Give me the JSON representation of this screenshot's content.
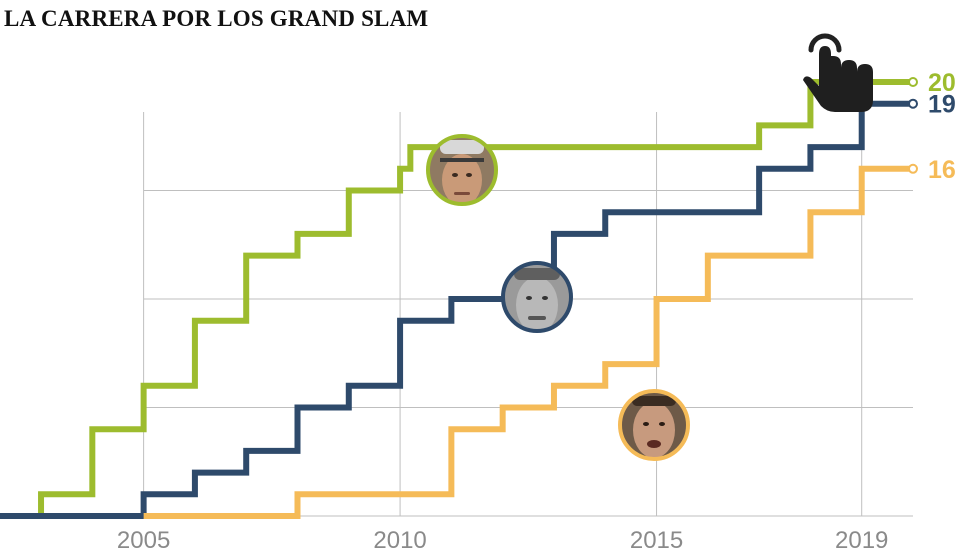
{
  "title": "LA CARRERA POR LOS GRAND SLAM",
  "colors": {
    "federer": "#9dbc2e",
    "nadal": "#2e4a6b",
    "djokovic": "#f5bb58",
    "grid": "#bfbfbf",
    "tick_text": "#8a8a8a"
  },
  "icons": {
    "pointer": "hand-pointer-icon",
    "photo": "player-photo-icon"
  },
  "chart_data": {
    "type": "line",
    "step": true,
    "title": "LA CARRERA POR LOS GRAND SLAM",
    "xlabel": "",
    "ylabel": "",
    "xlim": [
      2002.2,
      2020.0
    ],
    "ylim": [
      0,
      20
    ],
    "x_ticks": [
      2005,
      2010,
      2015,
      2019
    ],
    "x_tick_labels": [
      "2005",
      "2010",
      "2015",
      "2019"
    ],
    "y_gridlines": [
      5,
      10,
      15,
      20
    ],
    "grid": "vertical and horizontal light gray",
    "legend": "none (final values labeled at right end)",
    "series": [
      {
        "key": "federer",
        "color": "#9dbc2e",
        "final_label": "20",
        "x": [
          2002.2,
          2003.0,
          2004.0,
          2005.0,
          2006.0,
          2007.0,
          2008.0,
          2009.0,
          2010.0,
          2010.2,
          2017.0,
          2018.0,
          2020.0
        ],
        "y": [
          0,
          1,
          4,
          6,
          9,
          12,
          13,
          15,
          16,
          17,
          18,
          20,
          20
        ]
      },
      {
        "key": "nadal",
        "color": "#2e4a6b",
        "final_label": "19",
        "x": [
          2002.2,
          2005.0,
          2006.0,
          2007.0,
          2008.0,
          2009.0,
          2010.0,
          2011.0,
          2013.0,
          2014.0,
          2017.0,
          2018.0,
          2019.0,
          2020.0
        ],
        "y": [
          0,
          1,
          2,
          3,
          5,
          6,
          9,
          10,
          13,
          14,
          16,
          17,
          19,
          19
        ]
      },
      {
        "key": "djokovic",
        "color": "#f5bb58",
        "final_label": "16",
        "x": [
          2005.0,
          2008.0,
          2011.0,
          2012.0,
          2013.0,
          2014.0,
          2015.0,
          2016.0,
          2018.0,
          2019.0,
          2020.0
        ],
        "y": [
          0,
          1,
          4,
          5,
          6,
          7,
          10,
          12,
          14,
          16,
          16
        ]
      }
    ]
  }
}
